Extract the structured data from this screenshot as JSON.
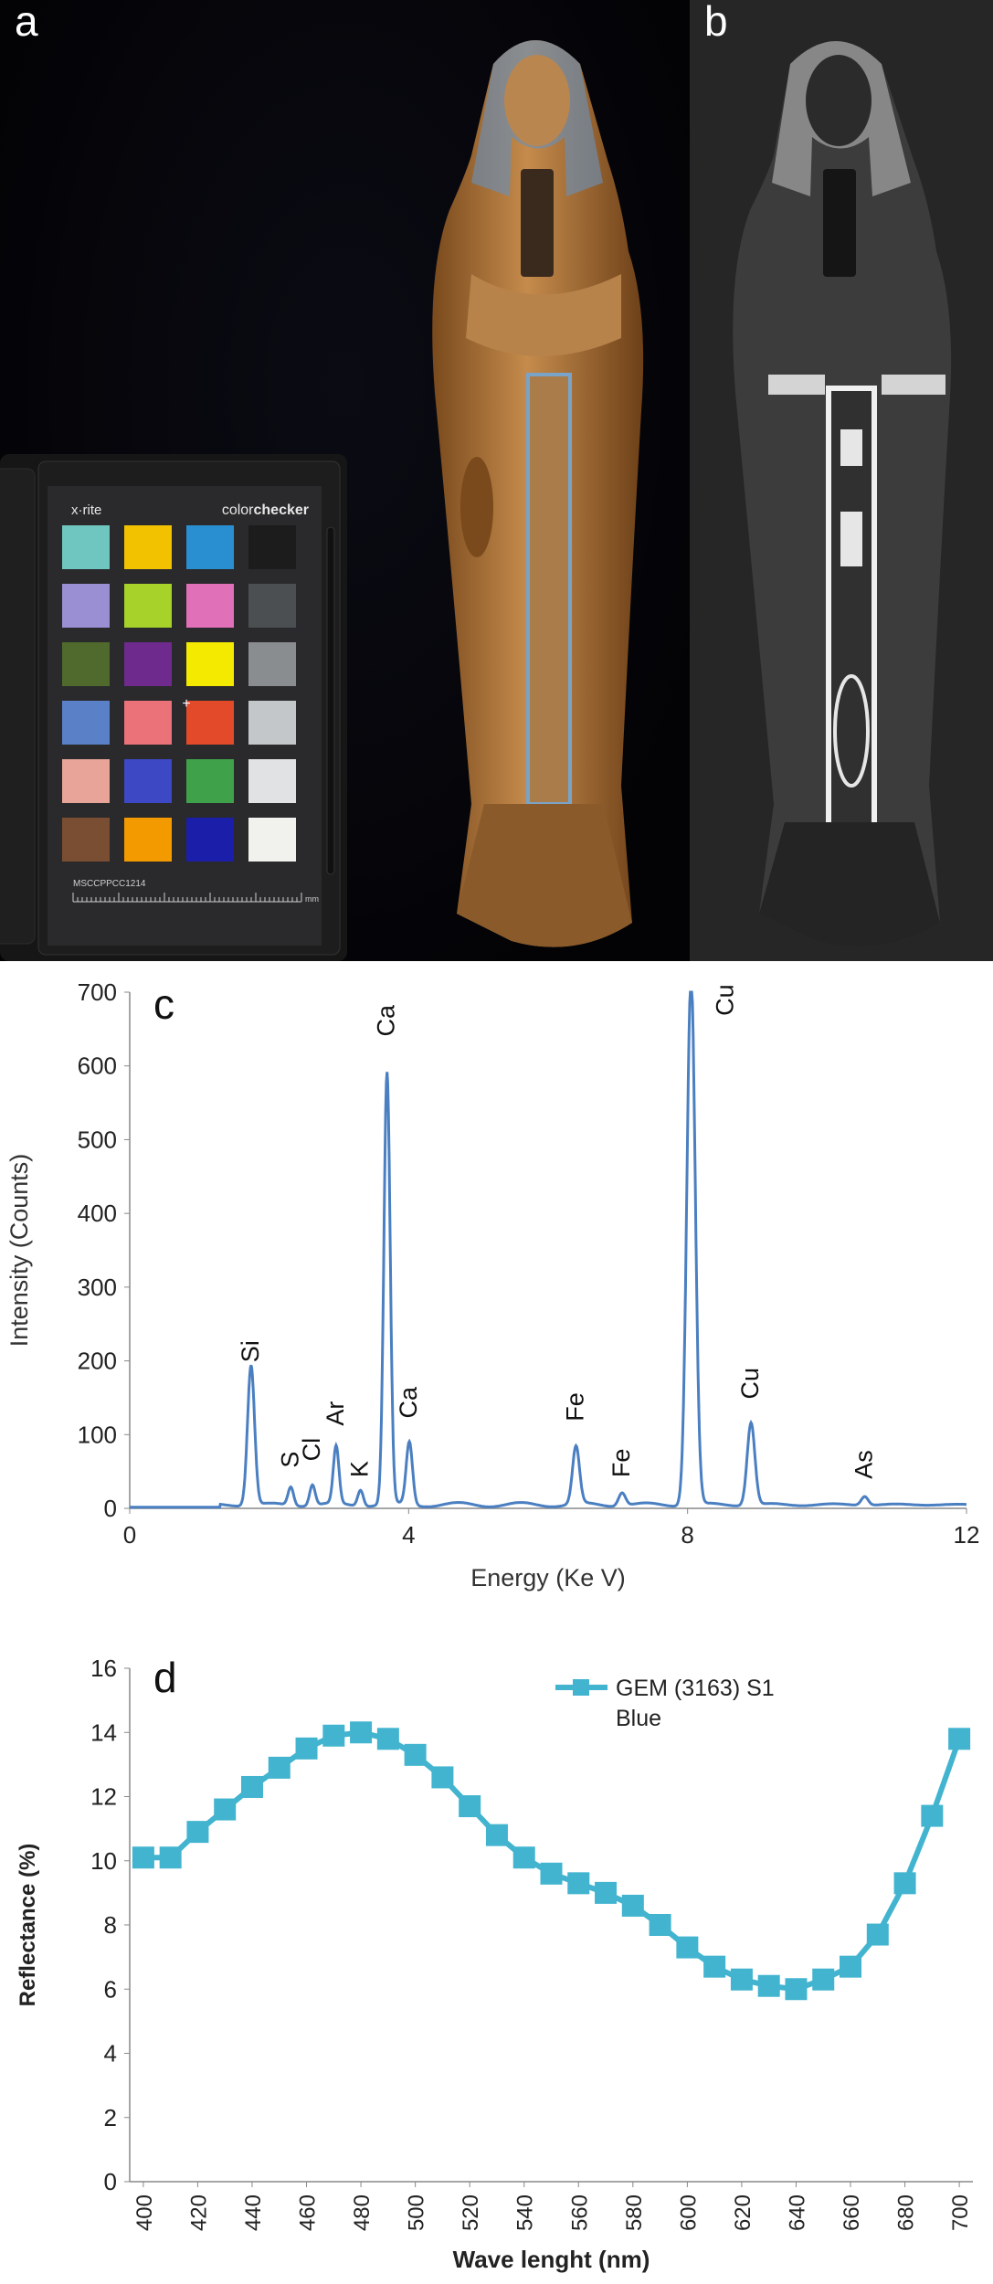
{
  "panels": {
    "a": "a",
    "b": "b"
  },
  "colorchecker": {
    "brand": "x·rite",
    "product_prefix": "color",
    "product_suffix": "checker",
    "serial": "MSCCPPCC1214",
    "unit": "mm",
    "patches": [
      "#6fc6c0",
      "#f2c200",
      "#2a8fd0",
      "#1c1c1c",
      "#9b8fd3",
      "#a6d22a",
      "#e070b8",
      "#4c4f52",
      "#4f6a2c",
      "#6e2a8c",
      "#f4ea00",
      "#8a8d90",
      "#5a80c8",
      "#ea7278",
      "#e34a2a",
      "#c4c7c9",
      "#e8a498",
      "#3c48c4",
      "#3fa24a",
      "#e0e2e3",
      "#7a4e32",
      "#f39a00",
      "#1a1ea8",
      "#f1f1ee"
    ]
  },
  "chart_data": [
    {
      "panel": "c",
      "type": "line",
      "title": "",
      "xlabel": "Energy (Ke V)",
      "ylabel": "Intensity (Counts)",
      "xlim": [
        0,
        12
      ],
      "ylim": [
        0,
        700
      ],
      "xticks": [
        "0",
        "4",
        "8",
        "12"
      ],
      "yticks": [
        "0",
        "100",
        "200",
        "300",
        "400",
        "500",
        "600",
        "700"
      ],
      "color": "#4a7fc1",
      "baseline": 5,
      "peaks": [
        {
          "x": 1.74,
          "y": 190,
          "w": 0.05
        },
        {
          "x": 2.31,
          "y": 25,
          "w": 0.04
        },
        {
          "x": 2.62,
          "y": 28,
          "w": 0.04
        },
        {
          "x": 2.96,
          "y": 78,
          "w": 0.04
        },
        {
          "x": 3.31,
          "y": 22,
          "w": 0.04
        },
        {
          "x": 3.69,
          "y": 585,
          "w": 0.045
        },
        {
          "x": 4.01,
          "y": 85,
          "w": 0.045
        },
        {
          "x": 6.4,
          "y": 78,
          "w": 0.05
        },
        {
          "x": 7.06,
          "y": 18,
          "w": 0.05
        },
        {
          "x": 8.05,
          "y": 720,
          "w": 0.06
        },
        {
          "x": 8.91,
          "y": 112,
          "w": 0.055
        },
        {
          "x": 10.54,
          "y": 12,
          "w": 0.05
        }
      ],
      "labels": [
        {
          "text": "Si",
          "x": 1.74,
          "y": 198
        },
        {
          "text": "S",
          "x": 2.31,
          "y": 55
        },
        {
          "text": "Cl",
          "x": 2.62,
          "y": 64
        },
        {
          "text": "Ar",
          "x": 2.96,
          "y": 112
        },
        {
          "text": "K",
          "x": 3.31,
          "y": 42
        },
        {
          "text": "Ca",
          "x": 3.69,
          "y": 640
        },
        {
          "text": "Ca",
          "x": 4.01,
          "y": 122
        },
        {
          "text": "Fe",
          "x": 6.4,
          "y": 118
        },
        {
          "text": "Fe",
          "x": 7.06,
          "y": 42
        },
        {
          "text": "Cu",
          "x": 8.55,
          "y": 668
        },
        {
          "text": "Cu",
          "x": 8.91,
          "y": 148
        },
        {
          "text": "As",
          "x": 10.54,
          "y": 40
        }
      ]
    },
    {
      "panel": "d",
      "type": "line",
      "title": "",
      "xlabel": "Wave lenght (nm)",
      "ylabel": "Reflectance (%)",
      "xlim": [
        395,
        705
      ],
      "ylim": [
        0,
        16
      ],
      "xticks": [
        "400",
        "420",
        "440",
        "460",
        "480",
        "500",
        "520",
        "540",
        "560",
        "580",
        "600",
        "620",
        "640",
        "660",
        "680",
        "700"
      ],
      "yticks": [
        "0",
        "2",
        "4",
        "6",
        "8",
        "10",
        "12",
        "14",
        "16"
      ],
      "color": "#42b4cf",
      "legend": [
        "GEM (3163) S1",
        "Blue"
      ],
      "legend_position": "top-right",
      "x": [
        400,
        410,
        420,
        430,
        440,
        450,
        460,
        470,
        480,
        490,
        500,
        510,
        520,
        530,
        540,
        550,
        560,
        570,
        580,
        590,
        600,
        610,
        620,
        630,
        640,
        650,
        660,
        670,
        680,
        690,
        700
      ],
      "y": [
        10.1,
        10.1,
        10.9,
        11.6,
        12.3,
        12.9,
        13.5,
        13.9,
        14.0,
        13.8,
        13.3,
        12.6,
        11.7,
        10.8,
        10.1,
        9.6,
        9.3,
        9.0,
        8.6,
        8.0,
        7.3,
        6.7,
        6.3,
        6.1,
        6.0,
        6.3,
        6.7,
        7.7,
        9.3,
        11.4,
        13.8
      ]
    }
  ]
}
